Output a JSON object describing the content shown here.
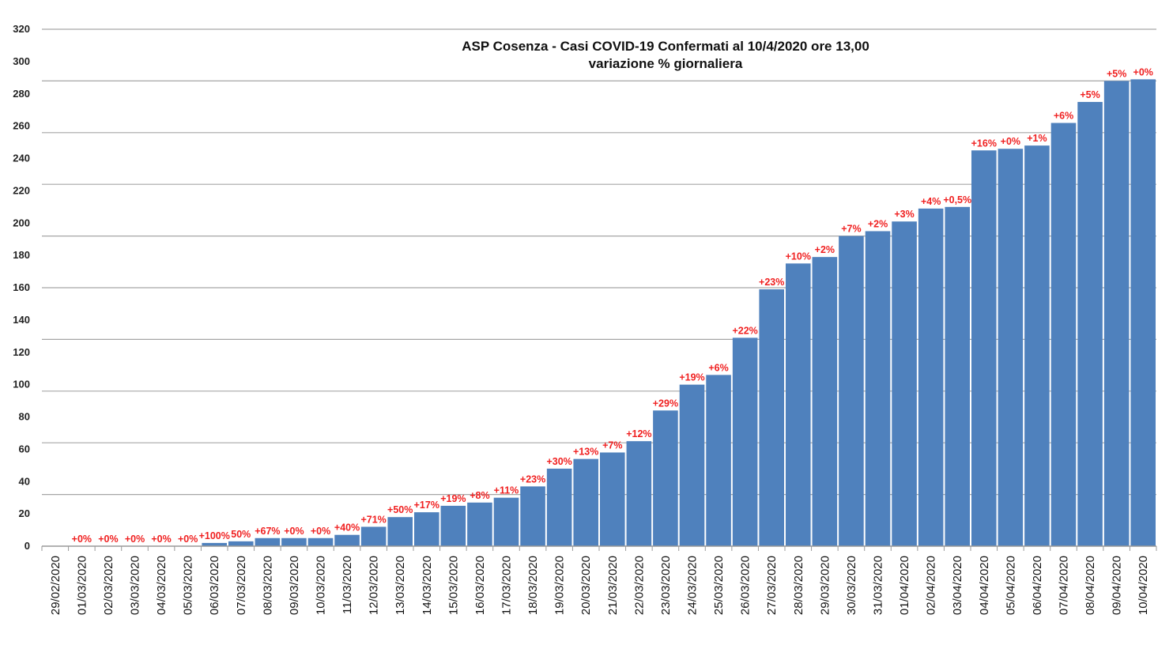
{
  "chart_data": {
    "type": "bar",
    "title": "ASP Cosenza - Casi COVID-19 Confermati al 10/4/2020 ore 13,00",
    "subtitle": "variazione % giornaliera",
    "xlabel": "",
    "ylabel": "",
    "ylim": [
      0,
      320
    ],
    "yticks": [
      "0",
      "20",
      "40",
      "60",
      "80",
      "100",
      "120",
      "140",
      "160",
      "180",
      "200",
      "220",
      "240",
      "260",
      "280",
      "300",
      "320"
    ],
    "grid": true,
    "bar_color": "#4f81bd",
    "label_color": "#f02020",
    "categories": [
      "29/02/2020",
      "01/03/2020",
      "02/03/2020",
      "03/03/2020",
      "04/03/2020",
      "05/03/2020",
      "06/03/2020",
      "07/03/2020",
      "08/03/2020",
      "09/03/2020",
      "10/03/2020",
      "11/03/2020",
      "12/03/2020",
      "13/03/2020",
      "14/03/2020",
      "15/03/2020",
      "16/03/2020",
      "17/03/2020",
      "18/03/2020",
      "19/03/2020",
      "20/03/2020",
      "21/03/2020",
      "22/03/2020",
      "23/03/2020",
      "24/03/2020",
      "25/03/2020",
      "26/03/2020",
      "27/03/2020",
      "28/03/2020",
      "29/03/2020",
      "30/03/2020",
      "31/03/2020",
      "01/04/2020",
      "02/04/2020",
      "03/04/2020",
      "04/04/2020",
      "05/04/2020",
      "06/04/2020",
      "07/04/2020",
      "08/04/2020",
      "09/04/2020",
      "10/04/2020"
    ],
    "values": [
      0,
      0,
      0,
      0,
      0,
      0,
      2,
      3,
      5,
      5,
      5,
      7,
      12,
      18,
      21,
      25,
      27,
      30,
      37,
      48,
      54,
      58,
      65,
      84,
      100,
      106,
      129,
      159,
      175,
      179,
      192,
      195,
      201,
      209,
      210,
      245,
      246,
      248,
      262,
      275,
      288,
      289
    ],
    "data_labels": [
      "",
      "+0%",
      "+0%",
      "+0%",
      "+0%",
      "+0%",
      "+100%",
      "50%",
      "+67%",
      "+0%",
      "+0%",
      "+40%",
      "+71%",
      "+50%",
      "+17%",
      "+19%",
      "+8%",
      "+11%",
      "+23%",
      "+30%",
      "+13%",
      "+7%",
      "+12%",
      "+29%",
      "+19%",
      "+6%",
      "+22%",
      "+23%",
      "+10%",
      "+2%",
      "+7%",
      "+2%",
      "+3%",
      "+4%",
      "+0,5%",
      "+16%",
      "+0%",
      "+1%",
      "+6%",
      "+5%",
      "+5%",
      "+0%"
    ]
  }
}
